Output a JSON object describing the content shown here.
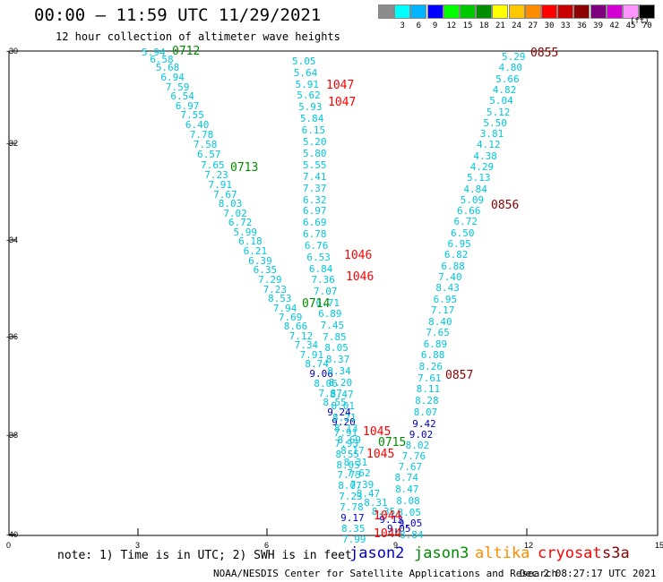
{
  "title": "00:00 – 11:59 UTC 11/29/2021",
  "subtitle": "12 hour collection of altimeter wave heights",
  "color_scale": {
    "colors": [
      "#8c8c8c",
      "#00ffff",
      "#00b4ff",
      "#0000ff",
      "#00ff00",
      "#00c800",
      "#008c00",
      "#ffff00",
      "#ffc800",
      "#ff8c00",
      "#ff0000",
      "#c80000",
      "#8c0000",
      "#7d007d",
      "#d200d2",
      "#ff96ff",
      "#000000"
    ],
    "labels": [
      "3",
      "6",
      "9",
      "12",
      "15",
      "18",
      "21",
      "24",
      "27",
      "30",
      "33",
      "36",
      "39",
      "42",
      "45",
      "70"
    ],
    "unit": "(ft)"
  },
  "map": {
    "lat_ticks": [
      "-30",
      "-32",
      "-34",
      "-36",
      "-38",
      "-40"
    ],
    "lon_ticks": [
      "0",
      "3",
      "6",
      "9",
      "12",
      "15"
    ]
  },
  "swh_colors": {
    "cyan": "#00c8dc",
    "blue": "#0000c8"
  },
  "tracks": [
    {
      "values": [
        "5.94",
        "6.58",
        "5.68",
        "6.94",
        "7.59",
        "6.54",
        "6.97",
        "7.55",
        "6.40",
        "7.78",
        "7.58",
        "6.57",
        "7.65",
        "7.23",
        "7.91",
        "7.67",
        "8.03",
        "7.02",
        "6.72",
        "5.99",
        "6.18",
        "6.21",
        "6.39",
        "6.35",
        "7.29",
        "7.23",
        "8.53",
        "7.94",
        "7.69",
        "8.66",
        "7.12",
        "7.34",
        "7.91",
        "8.74",
        "9.06",
        "8.06",
        "7.87",
        "8.55",
        "9.24",
        "9.20",
        "7.91",
        "7.93",
        "8.55",
        "8.05",
        "7.75",
        "8.07",
        "7.23",
        "7.78",
        "9.17",
        "8.35",
        "7.99"
      ],
      "colors": [
        "c",
        "c",
        "c",
        "c",
        "c",
        "c",
        "c",
        "c",
        "c",
        "c",
        "c",
        "c",
        "c",
        "c",
        "c",
        "c",
        "c",
        "c",
        "c",
        "c",
        "c",
        "c",
        "c",
        "c",
        "c",
        "c",
        "c",
        "c",
        "c",
        "c",
        "c",
        "c",
        "c",
        "c",
        "b",
        "c",
        "c",
        "c",
        "b",
        "b",
        "c",
        "c",
        "c",
        "c",
        "c",
        "c",
        "c",
        "c",
        "b",
        "c",
        "c"
      ]
    },
    {
      "values": [
        "5.05",
        "5.64",
        "5.91",
        "5.62",
        "5.93",
        "5.84",
        "6.15",
        "5.20",
        "5.80",
        "5.55",
        "7.41",
        "7.37",
        "6.32",
        "6.97",
        "6.69",
        "6.78",
        "6.76",
        "6.53",
        "6.84",
        "7.36",
        "7.07",
        "6.71",
        "6.89",
        "7.45",
        "7.85",
        "8.05",
        "8.37",
        "8.34",
        "8.20",
        "8.47",
        "8.01",
        "8.21",
        "8.13",
        "8.69",
        "8.17",
        "8.31",
        "7.62",
        "7.39",
        "8.47",
        "8.31",
        "8.35",
        "9.13",
        "9.05"
      ],
      "colors": [
        "c",
        "c",
        "c",
        "c",
        "c",
        "c",
        "c",
        "c",
        "c",
        "c",
        "c",
        "c",
        "c",
        "c",
        "c",
        "c",
        "c",
        "c",
        "c",
        "c",
        "c",
        "c",
        "c",
        "c",
        "c",
        "c",
        "c",
        "c",
        "c",
        "c",
        "c",
        "c",
        "c",
        "c",
        "c",
        "c",
        "c",
        "c",
        "c",
        "c",
        "c",
        "b",
        "b"
      ]
    },
    {
      "values": [
        "5.29",
        "4.80",
        "5.66",
        "4.82",
        "5.04",
        "5.12",
        "5.50",
        "3.81",
        "4.12",
        "4.38",
        "4.29",
        "5.13",
        "4.84",
        "5.09",
        "6.66",
        "6.72",
        "6.50",
        "6.95",
        "6.82",
        "6.88",
        "7.40",
        "8.43",
        "6.95",
        "7.17",
        "8.40",
        "7.65",
        "6.89",
        "6.88",
        "8.26",
        "7.61",
        "8.11",
        "8.28",
        "8.07",
        "9.42",
        "9.02",
        "8.02",
        "7.76",
        "7.67",
        "8.74",
        "8.47",
        "8.08",
        "8.05",
        "9.05",
        "8.84"
      ],
      "colors": [
        "c",
        "c",
        "c",
        "c",
        "c",
        "c",
        "c",
        "c",
        "c",
        "c",
        "c",
        "c",
        "c",
        "c",
        "c",
        "c",
        "c",
        "c",
        "c",
        "c",
        "c",
        "c",
        "c",
        "c",
        "c",
        "c",
        "c",
        "c",
        "c",
        "c",
        "c",
        "c",
        "c",
        "b",
        "b",
        "c",
        "c",
        "c",
        "c",
        "c",
        "c",
        "c",
        "b",
        "c"
      ]
    }
  ],
  "time_labels": [
    {
      "text": "0712",
      "color": "#008c00"
    },
    {
      "text": "0713",
      "color": "#008c00"
    },
    {
      "text": "0714",
      "color": "#008c00"
    },
    {
      "text": "0715",
      "color": "#008c00"
    },
    {
      "text": "1047",
      "color": "#ff0000"
    },
    {
      "text": "1047",
      "color": "#ff0000"
    },
    {
      "text": "1046",
      "color": "#ff0000"
    },
    {
      "text": "1046",
      "color": "#ff0000"
    },
    {
      "text": "1045",
      "color": "#ff0000"
    },
    {
      "text": "1045",
      "color": "#ff0000"
    },
    {
      "text": "1044",
      "color": "#ff0000"
    },
    {
      "text": "1044",
      "color": "#ff0000"
    },
    {
      "text": "0855",
      "color": "#8c0000"
    },
    {
      "text": "0856",
      "color": "#8c0000"
    },
    {
      "text": "0857",
      "color": "#8c0000"
    }
  ],
  "note": "note: 1) Time is in UTC; 2) SWH is in feet",
  "satellites": [
    {
      "name": "jason2",
      "color": "#0000c8"
    },
    {
      "name": "jason3",
      "color": "#008c00"
    },
    {
      "name": "altika",
      "color": "#ff8c00"
    },
    {
      "name": "cryosat",
      "color": "#ff0000"
    },
    {
      "name": "s3a",
      "color": "#8c0000"
    }
  ],
  "footer": "NOAA/NESDIS Center for Satellite Applications and Research",
  "timestamp": "Dec  2 08:27:17 UTC 2021"
}
